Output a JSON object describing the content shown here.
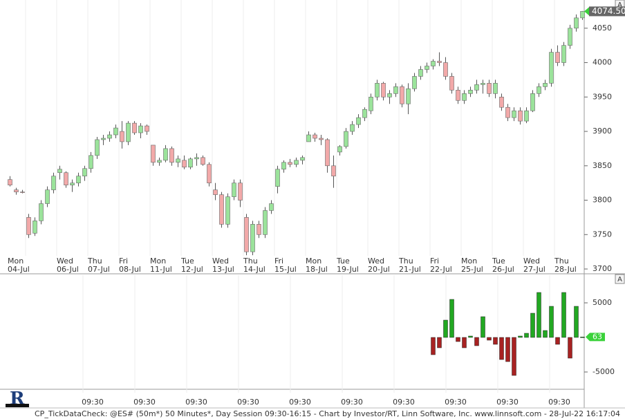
{
  "chart_data": {
    "type": "candlestick",
    "footer": "CP_TickDataCheck: @ES# (50m*) 50 Minutes*, Day Session 09:30-16:15 - Chart by Investor/RT, Linn Software, Inc. www.linnsoft.com - 28-Jul-22 16:17:04",
    "scale_button": "A",
    "up_color": "#9be39b",
    "down_color": "#f2a9a9",
    "lower_up_color": "#22a822",
    "lower_down_color": "#a82222",
    "ylim": [
      3694,
      4091
    ],
    "yticks": [
      3700,
      3750,
      3800,
      3850,
      3900,
      3950,
      4000,
      4050
    ],
    "last_price": {
      "value": 4074.5,
      "label": "4074.50"
    },
    "lower_ylim": [
      -7500,
      9000
    ],
    "lower_yticks": [
      -5000,
      5000
    ],
    "lower_last": 63,
    "time_labels": [
      "09:30",
      "09:30",
      "09:30",
      "09:30",
      "09:30",
      "09:30",
      "09:30",
      "09:30",
      "09:30",
      "09:30"
    ],
    "days": [
      {
        "weekday": "Mon",
        "date": "04-Jul",
        "candles": [
          [
            3830,
            3835,
            3820,
            3822
          ],
          [
            3815,
            3818,
            3808,
            3812
          ],
          [
            3812,
            3815,
            3810,
            3811
          ]
        ]
      },
      {
        "weekday": null,
        "date": null,
        "candles": [
          [
            3775,
            3780,
            3745,
            3750
          ],
          [
            3752,
            3775,
            3748,
            3770
          ],
          [
            3770,
            3800,
            3765,
            3795
          ],
          [
            3795,
            3820,
            3790,
            3815
          ],
          [
            3815,
            3840,
            3810,
            3835
          ]
        ]
      },
      {
        "weekday": "Wed",
        "date": "06-Jul",
        "candles": [
          [
            3840,
            3850,
            3830,
            3845
          ],
          [
            3840,
            3842,
            3818,
            3822
          ],
          [
            3822,
            3830,
            3812,
            3825
          ],
          [
            3825,
            3840,
            3820,
            3835
          ],
          [
            3835,
            3850,
            3828,
            3846
          ]
        ]
      },
      {
        "weekday": "Thu",
        "date": "07-Jul",
        "candles": [
          [
            3846,
            3870,
            3840,
            3865
          ],
          [
            3865,
            3892,
            3860,
            3888
          ],
          [
            3888,
            3895,
            3880,
            3890
          ],
          [
            3890,
            3900,
            3885,
            3895
          ],
          [
            3895,
            3910,
            3890,
            3905
          ]
        ]
      },
      {
        "weekday": "Fri",
        "date": "08-Jul",
        "candles": [
          [
            3900,
            3915,
            3875,
            3885
          ],
          [
            3885,
            3915,
            3880,
            3912
          ],
          [
            3912,
            3915,
            3895,
            3898
          ],
          [
            3898,
            3912,
            3890,
            3908
          ],
          [
            3908,
            3910,
            3895,
            3900
          ]
        ]
      },
      {
        "weekday": "Mon",
        "date": "11-Jul",
        "candles": [
          [
            3880,
            3880,
            3850,
            3855
          ],
          [
            3855,
            3862,
            3850,
            3858
          ],
          [
            3858,
            3880,
            3855,
            3875
          ],
          [
            3875,
            3878,
            3850,
            3855
          ],
          [
            3855,
            3865,
            3848,
            3860
          ]
        ]
      },
      {
        "weekday": "Tue",
        "date": "12-Jul",
        "candles": [
          [
            3858,
            3865,
            3845,
            3848
          ],
          [
            3848,
            3862,
            3845,
            3860
          ],
          [
            3860,
            3868,
            3850,
            3862
          ],
          [
            3862,
            3865,
            3850,
            3852
          ],
          [
            3852,
            3855,
            3820,
            3825
          ]
        ]
      },
      {
        "weekday": "Wed",
        "date": "13-Jul",
        "candles": [
          [
            3815,
            3825,
            3800,
            3808
          ],
          [
            3808,
            3812,
            3760,
            3765
          ],
          [
            3765,
            3810,
            3760,
            3805
          ],
          [
            3805,
            3830,
            3800,
            3825
          ],
          [
            3825,
            3830,
            3790,
            3800
          ]
        ]
      },
      {
        "weekday": "Thu",
        "date": "14-Jul",
        "candles": [
          [
            3775,
            3780,
            3720,
            3725
          ],
          [
            3725,
            3770,
            3720,
            3765
          ],
          [
            3765,
            3770,
            3745,
            3750
          ],
          [
            3750,
            3790,
            3745,
            3785
          ],
          [
            3785,
            3800,
            3780,
            3795
          ]
        ]
      },
      {
        "weekday": "Fri",
        "date": "15-Jul",
        "candles": [
          [
            3820,
            3850,
            3810,
            3845
          ],
          [
            3845,
            3858,
            3840,
            3855
          ],
          [
            3855,
            3860,
            3848,
            3852
          ],
          [
            3852,
            3862,
            3848,
            3858
          ],
          [
            3858,
            3865,
            3852,
            3862
          ]
        ]
      },
      {
        "weekday": "Mon",
        "date": "18-Jul",
        "candles": [
          [
            3885,
            3900,
            3885,
            3895
          ],
          [
            3895,
            3898,
            3885,
            3890
          ],
          [
            3890,
            3895,
            3880,
            3888
          ],
          [
            3888,
            3890,
            3840,
            3850
          ],
          [
            3850,
            3865,
            3818,
            3835
          ]
        ]
      },
      {
        "weekday": "Tue",
        "date": "19-Jul",
        "candles": [
          [
            3870,
            3880,
            3865,
            3878
          ],
          [
            3878,
            3905,
            3875,
            3900
          ],
          [
            3900,
            3915,
            3895,
            3910
          ],
          [
            3910,
            3925,
            3905,
            3920
          ],
          [
            3920,
            3935,
            3915,
            3932
          ]
        ]
      },
      {
        "weekday": "Wed",
        "date": "20-Jul",
        "candles": [
          [
            3930,
            3955,
            3925,
            3950
          ],
          [
            3950,
            3975,
            3945,
            3970
          ],
          [
            3970,
            3972,
            3945,
            3950
          ],
          [
            3950,
            3960,
            3940,
            3955
          ],
          [
            3955,
            3970,
            3950,
            3965
          ]
        ]
      },
      {
        "weekday": "Thu",
        "date": "21-Jul",
        "candles": [
          [
            3965,
            3968,
            3935,
            3940
          ],
          [
            3940,
            3970,
            3925,
            3962
          ],
          [
            3962,
            3985,
            3958,
            3980
          ],
          [
            3980,
            3995,
            3975,
            3990
          ],
          [
            3990,
            4000,
            3985,
            3995
          ]
        ]
      },
      {
        "weekday": "Fri",
        "date": "22-Jul",
        "candles": [
          [
            3995,
            4005,
            3990,
            4002
          ],
          [
            4002,
            4015,
            3995,
            4000
          ],
          [
            4000,
            4008,
            3975,
            3980
          ],
          [
            3980,
            3985,
            3955,
            3960
          ],
          [
            3960,
            3965,
            3940,
            3945
          ]
        ],
        "lower": [
          -2500,
          -1500,
          2500,
          5500,
          -600
        ]
      },
      {
        "weekday": "Mon",
        "date": "25-Jul",
        "candles": [
          [
            3945,
            3960,
            3940,
            3955
          ],
          [
            3955,
            3965,
            3950,
            3960
          ],
          [
            3960,
            3975,
            3955,
            3968
          ],
          [
            3968,
            3975,
            3955,
            3970
          ],
          [
            3970,
            3975,
            3950,
            3955
          ]
        ],
        "lower": [
          -1500,
          200,
          -1200,
          3000,
          -400
        ]
      },
      {
        "weekday": "Tue",
        "date": "26-Jul",
        "candles": [
          [
            3955,
            3975,
            3948,
            3970
          ],
          [
            3950,
            3955,
            3930,
            3935
          ],
          [
            3935,
            3940,
            3915,
            3920
          ],
          [
            3920,
            3935,
            3915,
            3930
          ],
          [
            3930,
            3935,
            3910,
            3915
          ]
        ],
        "lower": [
          -1000,
          -3200,
          -3500,
          -5500,
          200
        ]
      },
      {
        "weekday": "Wed",
        "date": "27-Jul",
        "candles": [
          [
            3915,
            3935,
            3912,
            3930
          ],
          [
            3930,
            3960,
            3928,
            3955
          ],
          [
            3955,
            3970,
            3950,
            3965
          ],
          [
            3965,
            3975,
            3960,
            3970
          ],
          [
            3970,
            4020,
            3965,
            4015
          ]
        ],
        "lower": [
          600,
          3500,
          6500,
          1000,
          4500
        ]
      },
      {
        "weekday": "Thu",
        "date": "28-Jul",
        "candles": [
          [
            4015,
            4025,
            3995,
            4000
          ],
          [
            4000,
            4030,
            3995,
            4025
          ],
          [
            4025,
            4055,
            4020,
            4050
          ],
          [
            4050,
            4070,
            4045,
            4065
          ],
          [
            4065,
            4075,
            4062,
            4074.5
          ]
        ],
        "lower": [
          -1000,
          6500,
          -3000,
          4500,
          63
        ]
      }
    ]
  }
}
